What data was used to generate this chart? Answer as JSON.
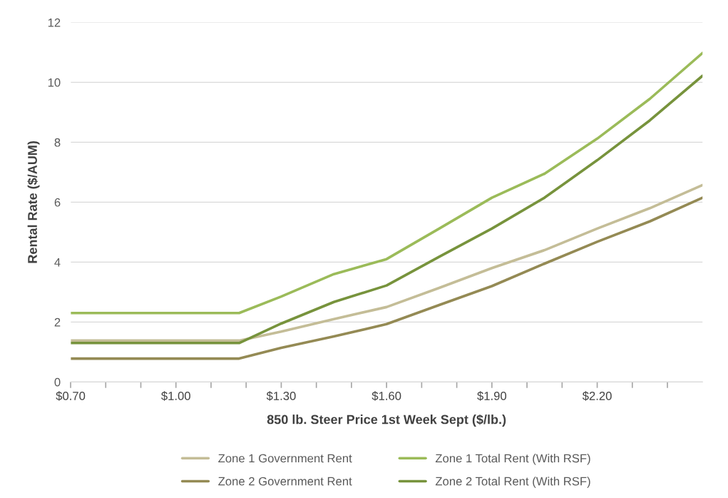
{
  "chart_data": {
    "type": "line",
    "xlabel": "850 lb. Steer Price 1st Week Sept ($/lb.)",
    "ylabel": "Rental Rate ($/AUM)",
    "x": [
      0.7,
      1.18,
      1.3,
      1.45,
      1.6,
      1.75,
      1.9,
      2.05,
      2.2,
      2.35,
      2.5
    ],
    "series": [
      {
        "name": "Zone 1 Government Rent",
        "color": "#c4bd97",
        "values": [
          1.38,
          1.38,
          1.68,
          2.1,
          2.5,
          3.14,
          3.8,
          4.4,
          5.12,
          5.8,
          6.57
        ]
      },
      {
        "name": "Zone 1 Total Rent (With RSF)",
        "color": "#9bbb59",
        "values": [
          2.3,
          2.3,
          2.85,
          3.6,
          4.1,
          5.12,
          6.15,
          6.95,
          8.12,
          9.45,
          10.98
        ]
      },
      {
        "name": "Zone 2 Government Rent",
        "color": "#948a54",
        "values": [
          0.78,
          0.78,
          1.14,
          1.52,
          1.93,
          2.57,
          3.2,
          3.95,
          4.68,
          5.36,
          6.15
        ]
      },
      {
        "name": "Zone 2 Total Rent (With RSF)",
        "color": "#77933c",
        "values": [
          1.3,
          1.3,
          1.95,
          2.67,
          3.22,
          4.18,
          5.12,
          6.15,
          7.4,
          8.73,
          10.22
        ]
      }
    ],
    "xlim": [
      0.7,
      2.5
    ],
    "xticks": [
      {
        "value": 0.7,
        "label": "$0.70"
      },
      {
        "value": 0.8,
        "label": null
      },
      {
        "value": 0.9,
        "label": null
      },
      {
        "value": 1.0,
        "label": "$1.00"
      },
      {
        "value": 1.1,
        "label": null
      },
      {
        "value": 1.2,
        "label": null
      },
      {
        "value": 1.3,
        "label": "$1.30"
      },
      {
        "value": 1.4,
        "label": null
      },
      {
        "value": 1.5,
        "label": null
      },
      {
        "value": 1.6,
        "label": "$1.60"
      },
      {
        "value": 1.7,
        "label": null
      },
      {
        "value": 1.8,
        "label": null
      },
      {
        "value": 1.9,
        "label": "$1.90"
      },
      {
        "value": 2.0,
        "label": null
      },
      {
        "value": 2.1,
        "label": null
      },
      {
        "value": 2.2,
        "label": "$2.20"
      },
      {
        "value": 2.3,
        "label": null
      },
      {
        "value": 2.4,
        "label": null
      }
    ],
    "ylim": [
      0,
      12
    ],
    "yticks": [
      0,
      2,
      4,
      6,
      8,
      10,
      12
    ],
    "grid": "y",
    "legend": "bottom",
    "marker": "none",
    "line_style": "solid"
  }
}
